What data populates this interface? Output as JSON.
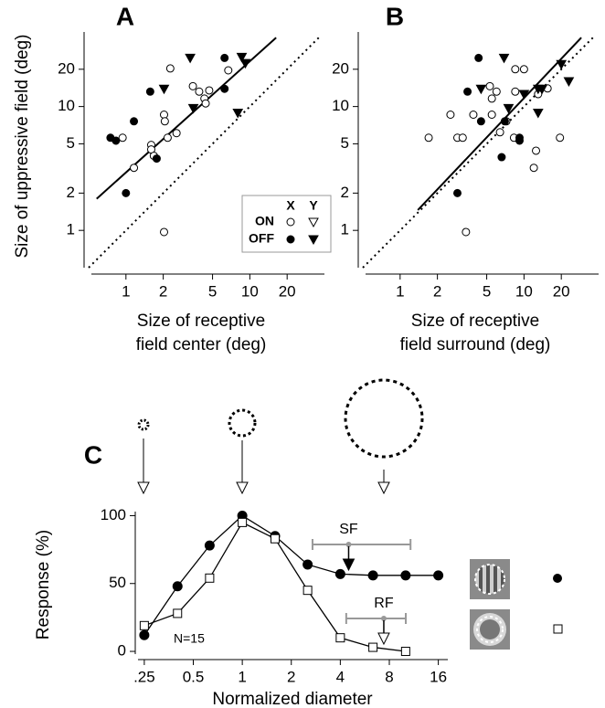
{
  "chart_data": [
    {
      "type": "scatter",
      "panel": "A",
      "ylabel": "Size of uppressive field (deg)",
      "xlabel": [
        "Size of receptive",
        "field center (deg)"
      ],
      "xscale": "log",
      "yscale": "log",
      "xlim": [
        0.5,
        40
      ],
      "ylim": [
        0.5,
        40
      ],
      "xticks": [
        1,
        2,
        5,
        10,
        20
      ],
      "yticks": [
        1,
        2,
        5,
        10,
        20
      ],
      "series": [
        {
          "marker": "open-circle",
          "color": "#000000",
          "x": [
            0.94,
            1.16,
            1.6,
            1.6,
            1.68,
            2.03,
            2.06,
            2.28,
            2.17,
            2.56,
            3.47,
            3.9,
            4.3,
            4.4,
            4.7,
            6.7,
            2.03
          ],
          "values": [
            5.6,
            3.2,
            4.9,
            4.5,
            4.0,
            8.6,
            7.6,
            20.3,
            5.6,
            6.1,
            14.6,
            13.2,
            11.6,
            10.6,
            13.5,
            19.6,
            0.97
          ]
        },
        {
          "marker": "open-triangle",
          "color": "#000000",
          "x": [],
          "values": []
        },
        {
          "marker": "filled-circle",
          "color": "#000000",
          "x": [
            0.75,
            0.83,
            1.16,
            1.57,
            1.77,
            1.0,
            6.25,
            6.25
          ],
          "values": [
            5.6,
            5.3,
            7.6,
            13.2,
            3.8,
            2.0,
            24.7,
            13.9
          ]
        },
        {
          "marker": "filled-triangle",
          "color": "#000000",
          "x": [
            2.03,
            3.3,
            3.5,
            8.6,
            9.2,
            8.0
          ],
          "values": [
            13.9,
            24.7,
            9.7,
            25.1,
            22.4,
            8.9
          ]
        }
      ],
      "fit_line": {
        "x": [
          0.58,
          16.3
        ],
        "values": [
          1.8,
          36
        ]
      },
      "unity_line": {
        "x": [
          0.5,
          36
        ],
        "values": [
          0.5,
          36
        ]
      },
      "legend": {
        "columns": [
          "X",
          "Y"
        ],
        "rows": [
          "ON",
          "OFF"
        ]
      }
    },
    {
      "type": "scatter",
      "panel": "B",
      "xlabel": [
        "Size of receptive",
        "field surround (deg)"
      ],
      "xscale": "log",
      "yscale": "log",
      "xlim": [
        0.5,
        40
      ],
      "ylim": [
        0.5,
        40
      ],
      "xticks": [
        1,
        2,
        5,
        10,
        20
      ],
      "yticks": [
        1,
        2,
        5,
        10,
        20
      ],
      "series": [
        {
          "marker": "open-circle",
          "color": "#000000",
          "x": [
            2.9,
            3.9,
            5.5,
            8.5,
            10,
            5.3,
            5.5,
            6.0,
            7.2,
            6.4,
            8.5,
            13,
            15.5,
            8.3,
            12.5,
            12,
            19.5,
            3.2,
            1.7,
            2.55,
            3.4
          ],
          "values": [
            5.6,
            8.6,
            8.6,
            20,
            20,
            14.6,
            11.6,
            13.2,
            7.6,
            6.2,
            13.2,
            12.6,
            14,
            5.6,
            4.4,
            3.2,
            5.6,
            5.6,
            5.6,
            8.6,
            0.97
          ]
        },
        {
          "marker": "filled-circle",
          "color": "#000000",
          "x": [
            4.3,
            3.5,
            4.5,
            7.0,
            9.2,
            9.2,
            2.9,
            6.6
          ],
          "values": [
            24.7,
            13.2,
            7.6,
            7.6,
            5.6,
            5.3,
            2.0,
            3.9
          ]
        },
        {
          "marker": "filled-triangle",
          "color": "#000000",
          "x": [
            4.5,
            6.9,
            7.5,
            10,
            13,
            14,
            20,
            23,
            13
          ],
          "values": [
            13.9,
            24.7,
            9.7,
            12.6,
            13.9,
            13.9,
            22,
            16,
            8.9
          ]
        }
      ],
      "fit_line": {
        "x": [
          1.39,
          29
        ],
        "values": [
          1.46,
          36
        ]
      },
      "unity_line": {
        "x": [
          0.5,
          36
        ],
        "values": [
          0.5,
          36
        ]
      }
    },
    {
      "type": "line",
      "panel": "C",
      "ylabel": "Response (%)",
      "xlabel": "Normalized diameter",
      "annotation": "N=15",
      "xscale": "log",
      "xlim": [
        0.22,
        18.3
      ],
      "ylim": [
        -2,
        103
      ],
      "xticks": [
        {
          "value": 0.25,
          "label": ".25"
        },
        0.5,
        1,
        2,
        4,
        8,
        16
      ],
      "yticks": [
        0,
        50,
        100
      ],
      "x": [
        0.25,
        0.4,
        0.63,
        1,
        1.59,
        2.52,
        4,
        6.35,
        10.08,
        16
      ],
      "series": [
        {
          "marker": "filled-circle",
          "color": "#000000",
          "values": [
            12,
            48,
            78,
            100,
            85,
            64,
            57,
            56,
            56,
            56
          ]
        },
        {
          "marker": "open-square",
          "color": "#000000",
          "values": [
            19,
            28,
            54,
            95,
            83,
            45,
            10,
            3,
            0,
            null
          ]
        }
      ],
      "intervals": [
        {
          "label": "SF",
          "x": 4.5,
          "low": 2.7,
          "high": 10.8,
          "arrow": "filled"
        },
        {
          "label": "RF",
          "x": 7.4,
          "low": 4.35,
          "high": 10.1,
          "arrow": "open"
        }
      ]
    }
  ]
}
